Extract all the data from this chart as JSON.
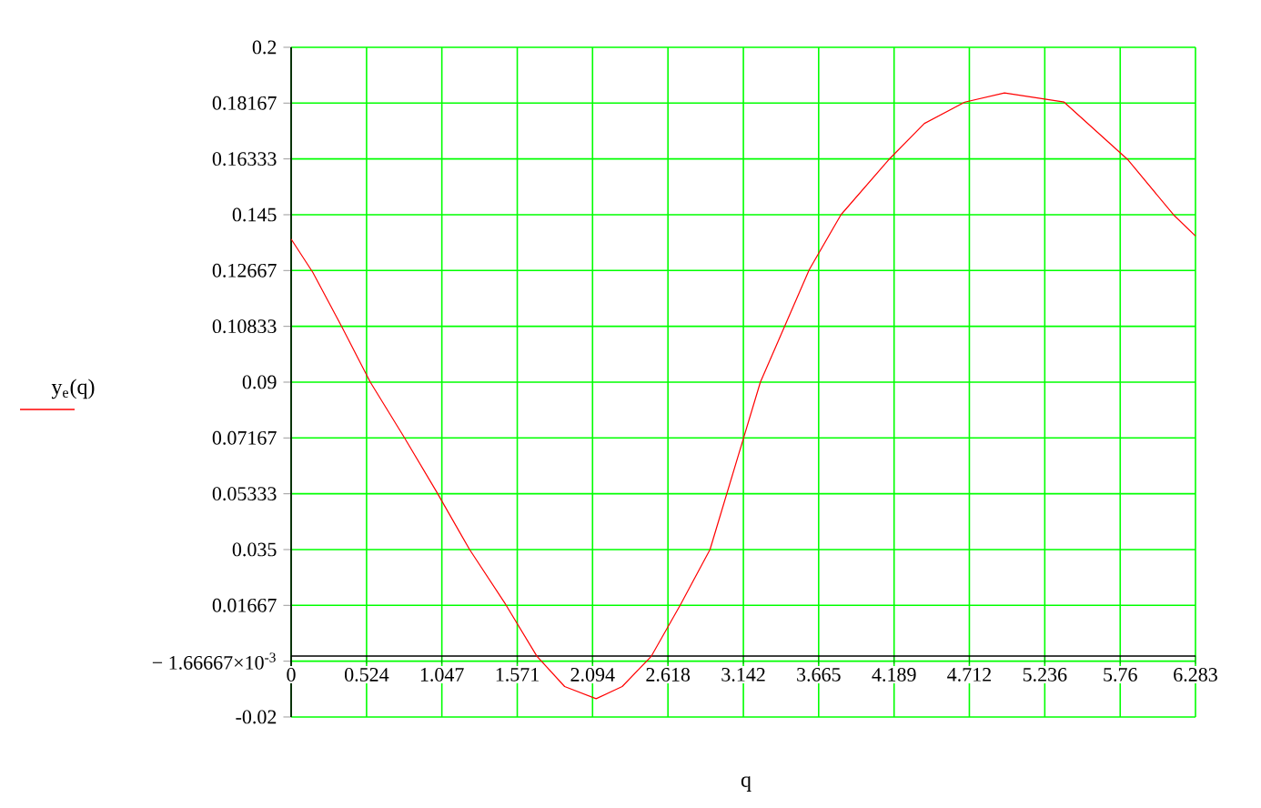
{
  "chart_data": {
    "type": "line",
    "xlabel": "q",
    "ylabel": "y$_{e}$(q)",
    "series": [
      {
        "color": "#ff0000",
        "x": [
          0,
          0.151,
          0.354,
          0.55,
          0.784,
          1.01,
          1.24,
          1.49,
          1.707,
          1.9,
          2.119,
          2.3,
          2.503,
          2.706,
          2.91,
          3.26,
          3.6,
          3.82,
          4.15,
          4.4,
          4.68,
          4.956,
          5.37,
          5.815,
          6.13,
          6.283
        ],
        "values": [
          0.137,
          0.126,
          0.108,
          0.09,
          0.072,
          0.054,
          0.035,
          0.017,
          0,
          -0.01,
          -0.014,
          -0.01,
          0,
          0.017,
          0.035,
          0.09,
          0.127,
          0.145,
          0.163,
          0.175,
          0.182,
          0.185,
          0.182,
          0.163,
          0.145,
          0.138
        ]
      }
    ],
    "xlim": [
      0,
      6.283
    ],
    "ylim": [
      -0.02,
      0.2
    ],
    "xticks": [
      0,
      0.524,
      1.047,
      1.571,
      2.094,
      2.618,
      3.142,
      3.665,
      4.189,
      4.712,
      5.236,
      5.76,
      6.283
    ],
    "yticks": [
      -0.02,
      {
        "value": -0.00166667,
        "label": "− 1.66667×10$^{-3}$"
      },
      0.01667,
      0.035,
      0.05333,
      0.07167,
      0.09,
      0.10833,
      0.12667,
      0.145,
      0.16333,
      0.18167,
      0.2
    ],
    "grid": true,
    "marker": "none",
    "line_style": "solid"
  }
}
